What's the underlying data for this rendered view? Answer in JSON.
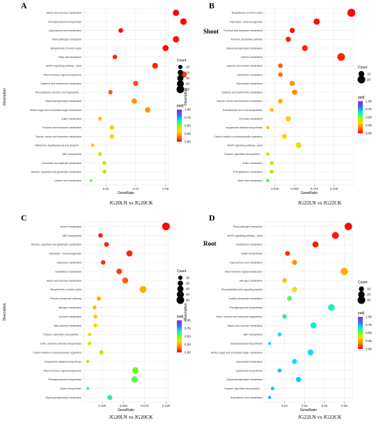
{
  "colors": {
    "panel_bg": "#ffffff",
    "grid": "#e6e6e6",
    "axis": "#222222",
    "gradient_padj": [
      "#8a2be2",
      "#4169e1",
      "#00e5ff",
      "#7fff00",
      "#ffd700",
      "#ff7f00",
      "#ff0000"
    ]
  },
  "chart_data": [
    {
      "type": "scatter",
      "panel_letter": "A",
      "caption": "JG20LN vs JG20CK",
      "side_label": "",
      "xlabel": "GeneRatio",
      "ylabel": "Description",
      "xlim": [
        0.005,
        0.062
      ],
      "xticks": [
        0.02,
        0.04,
        0.06
      ],
      "xtick_labels": [
        "0.02",
        "0.04",
        "0.06"
      ],
      "legend": {
        "count_title": "Count",
        "count_values": [
          10,
          20,
          30,
          40,
          50
        ],
        "count_labels": [
          "10",
          "20",
          "30",
          "40",
          "50"
        ],
        "padj_title": "padj",
        "padj_ticks": [
          "1.00",
          "0.75",
          "0.50",
          "0.25",
          "0.00"
        ]
      },
      "points": [
        {
          "term": "Linoleic acid metabolism",
          "x": 0.01,
          "count": 2,
          "padj": 0.55
        },
        {
          "term": "Alanine, aspartate and glutamate metabolism",
          "x": 0.019,
          "count": 8,
          "padj": 0.42
        },
        {
          "term": "Ascorbate and aldarate metabolism",
          "x": 0.019,
          "count": 8,
          "padj": 0.4
        },
        {
          "term": "ABC transporters",
          "x": 0.016,
          "count": 7,
          "padj": 0.38
        },
        {
          "term": "Stilbenoid, diarylheptanoid and gingerol ...",
          "x": 0.011,
          "count": 5,
          "padj": 0.3
        },
        {
          "term": "Glycine, serine and threonine metabolism",
          "x": 0.024,
          "count": 11,
          "padj": 0.32
        },
        {
          "term": "Fructose and mannose metabolism",
          "x": 0.024,
          "count": 11,
          "padj": 0.3
        },
        {
          "term": "Sulfur metabolism",
          "x": 0.016,
          "count": 7,
          "padj": 0.28
        },
        {
          "term": "Amino sugar and nucleotide sugar metabolism",
          "x": 0.048,
          "count": 22,
          "padj": 0.22
        },
        {
          "term": "Glycerophospholipid metabolism",
          "x": 0.039,
          "count": 18,
          "padj": 0.2
        },
        {
          "term": "Phenylalanine, tyrosine and tryptophan ...",
          "x": 0.023,
          "count": 11,
          "padj": 0.12
        },
        {
          "term": "Cysteine and methionine metabolism",
          "x": 0.04,
          "count": 18,
          "padj": 0.1
        },
        {
          "term": "Plant hormone signal transduction",
          "x": 0.072,
          "count": 33,
          "padj": 0.08
        },
        {
          "term": "MAPK signaling pathway - plant",
          "x": 0.053,
          "count": 24,
          "padj": 0.05
        },
        {
          "term": "Fatty acid elongation",
          "x": 0.026,
          "count": 12,
          "padj": 0.05
        },
        {
          "term": "Biosynthesis of amino acids",
          "x": 0.06,
          "count": 28,
          "padj": 0.02
        },
        {
          "term": "Plant-pathogen interaction",
          "x": 0.067,
          "count": 31,
          "padj": 0.02
        },
        {
          "term": "Cyanoamino acid metabolism",
          "x": 0.03,
          "count": 14,
          "padj": 0.02
        },
        {
          "term": "Phenylpropanoid biosynthesis",
          "x": 0.072,
          "count": 33,
          "padj": 0.01
        },
        {
          "term": "Starch and sucrose metabolism",
          "x": 0.067,
          "count": 31,
          "padj": 0.01
        }
      ]
    },
    {
      "type": "scatter",
      "panel_letter": "B",
      "caption": "JG22LN vs JG22CK",
      "side_label": "Shoot",
      "xlabel": "GeneRatio",
      "ylabel": "Description",
      "xlim": [
        0.012,
        0.125
      ],
      "xticks": [
        0.025,
        0.05,
        0.075,
        0.1
      ],
      "xtick_labels": [
        "0.025",
        "0.050",
        "0.075",
        "0.100"
      ],
      "legend": {
        "count_title": "Count",
        "count_values": [
          10,
          20
        ],
        "count_labels": [
          "10",
          "20"
        ],
        "padj_title": "padj",
        "padj_ticks": [
          "1.00",
          "0.75",
          "0.50",
          "0.25",
          "0.00"
        ]
      },
      "points": [
        {
          "term": "Ether lipid metabolism",
          "x": 0.016,
          "count": 2,
          "padj": 0.55
        },
        {
          "term": "Phenylalanine metabolism",
          "x": 0.021,
          "count": 3,
          "padj": 0.45
        },
        {
          "term": "Sulfur metabolism",
          "x": 0.021,
          "count": 3,
          "padj": 0.42
        },
        {
          "term": "Tropane, piperidine and pyridine ...",
          "x": 0.016,
          "count": 2,
          "padj": 0.4
        },
        {
          "term": "MAPK signaling pathway - plant",
          "x": 0.055,
          "count": 9,
          "padj": 0.35
        },
        {
          "term": "Carbon fixation in photosynthetic organisms",
          "x": 0.037,
          "count": 6,
          "padj": 0.32
        },
        {
          "term": "Isoquinoline alkaloid biosynthesis",
          "x": 0.016,
          "count": 2,
          "padj": 0.3
        },
        {
          "term": "Pyruvate metabolism",
          "x": 0.042,
          "count": 7,
          "padj": 0.3
        },
        {
          "term": "Pantothenate and CoA biosynthesis",
          "x": 0.021,
          "count": 3,
          "padj": 0.28
        },
        {
          "term": "Glycine, serine and threonine metabolism",
          "x": 0.032,
          "count": 5,
          "padj": 0.25
        },
        {
          "term": "Cysteine and methionine metabolism",
          "x": 0.05,
          "count": 8,
          "padj": 0.2
        },
        {
          "term": "Glycerolipid metabolism",
          "x": 0.047,
          "count": 7,
          "padj": 0.2
        },
        {
          "term": "Pyrimidine metabolism",
          "x": 0.032,
          "count": 5,
          "padj": 0.15
        },
        {
          "term": "Arginine and proline metabolism",
          "x": 0.032,
          "count": 5,
          "padj": 0.12
        },
        {
          "term": "Carbon metabolism",
          "x": 0.109,
          "count": 20,
          "padj": 0.05
        },
        {
          "term": "Glycerophospholipid metabolism",
          "x": 0.063,
          "count": 10,
          "padj": 0.05
        },
        {
          "term": "Pentose phosphate pathway",
          "x": 0.042,
          "count": 7,
          "padj": 0.04
        },
        {
          "term": "Fructose and mannose metabolism",
          "x": 0.047,
          "count": 7,
          "padj": 0.03
        },
        {
          "term": "Glycolysis / Gluconeogenesis",
          "x": 0.078,
          "count": 12,
          "padj": 0.02
        },
        {
          "term": "Biosynthesis of amino acids",
          "x": 0.122,
          "count": 22,
          "padj": 0.01
        }
      ]
    },
    {
      "type": "scatter",
      "panel_letter": "C",
      "caption": "JG20LN vs JG20CK",
      "side_label": "",
      "xlabel": "GeneRatio",
      "ylabel": "Description",
      "xlim": [
        0.003,
        0.103
      ],
      "xticks": [
        0.025,
        0.05,
        0.075,
        0.1
      ],
      "xtick_labels": [
        "0.025",
        "0.050",
        "0.075",
        "0.100"
      ],
      "legend": {
        "count_title": "Count",
        "count_values": [
          10,
          20,
          30,
          40,
          50
        ],
        "count_labels": [
          "10",
          "20",
          "30",
          "40",
          "50"
        ],
        "padj_title": "padj",
        "padj_ticks": [
          "1.00",
          "0.75",
          "0.50",
          "0.25",
          "0.00"
        ]
      },
      "points": [
        {
          "term": "Glycerophospholipid metabolism",
          "x": 0.034,
          "count": 17,
          "padj": 0.62
        },
        {
          "term": "Zeatin biosynthesis",
          "x": 0.008,
          "count": 3,
          "padj": 0.58
        },
        {
          "term": "Phenylpropanoid biosynthesis",
          "x": 0.063,
          "count": 33,
          "padj": 0.55
        },
        {
          "term": "Plant hormone signal transduction",
          "x": 0.064,
          "count": 33,
          "padj": 0.52
        },
        {
          "term": "Isoquinoline alkaloid biosynthesis",
          "x": 0.008,
          "count": 3,
          "padj": 0.45
        },
        {
          "term": "Carbon fixation in photosynthetic organisms",
          "x": 0.024,
          "count": 11,
          "padj": 0.42
        },
        {
          "term": "Cutin, suberine and wax biosynthesis",
          "x": 0.01,
          "count": 5,
          "padj": 0.38
        },
        {
          "term": "Tropane, piperidine and pyridine ...",
          "x": 0.01,
          "count": 5,
          "padj": 0.35
        },
        {
          "term": "beta-Alanine metabolism",
          "x": 0.017,
          "count": 8,
          "padj": 0.32
        },
        {
          "term": "Tyrosine metabolism",
          "x": 0.017,
          "count": 8,
          "padj": 0.3
        },
        {
          "term": "Nitrogen metabolism",
          "x": 0.016,
          "count": 8,
          "padj": 0.28
        },
        {
          "term": "Pentose phosphate pathway",
          "x": 0.021,
          "count": 10,
          "padj": 0.25
        },
        {
          "term": "Biosynthesis of amino acids",
          "x": 0.073,
          "count": 37,
          "padj": 0.25
        },
        {
          "term": "Starch and sucrose metabolism",
          "x": 0.052,
          "count": 26,
          "padj": 0.12
        },
        {
          "term": "Glutathione metabolism",
          "x": 0.045,
          "count": 22,
          "padj": 0.08
        },
        {
          "term": "Galactose metabolism",
          "x": 0.026,
          "count": 12,
          "padj": 0.06
        },
        {
          "term": "Glycolysis / Gluconeogenesis",
          "x": 0.057,
          "count": 28,
          "padj": 0.05
        },
        {
          "term": "Alanine, aspartate and glutamate metabolism",
          "x": 0.03,
          "count": 14,
          "padj": 0.04
        },
        {
          "term": "ABC transporters",
          "x": 0.023,
          "count": 11,
          "padj": 0.03
        },
        {
          "term": "Carbon metabolism",
          "x": 0.1,
          "count": 50,
          "padj": 0.01
        }
      ]
    },
    {
      "type": "scatter",
      "panel_letter": "D",
      "caption": "JG22LN vs JG22CK",
      "side_label": "Root",
      "xlabel": "GeneRatio",
      "ylabel": "Description",
      "xlim": [
        0.0,
        0.088
      ],
      "xticks": [
        0.02,
        0.04,
        0.06,
        0.08
      ],
      "xtick_labels": [
        "0.02",
        "0.04",
        "0.06",
        "0.08"
      ],
      "legend": {
        "count_title": "Count",
        "count_values": [
          10,
          20,
          30
        ],
        "count_labels": [
          "10",
          "20",
          "30"
        ],
        "padj_title": "padj",
        "padj_ticks": [
          "1.00",
          "0.75",
          "0.50",
          "0.25",
          "0.00"
        ]
      },
      "points": [
        {
          "term": "Arachidonic acid metabolism",
          "x": 0.005,
          "count": 2,
          "padj": 0.75
        },
        {
          "term": "Tropane, piperidine and pyridine ...",
          "x": 0.008,
          "count": 3,
          "padj": 0.72
        },
        {
          "term": "Glycerophospholipid metabolism",
          "x": 0.034,
          "count": 11,
          "padj": 0.7
        },
        {
          "term": "Carotenoid biosynthesis",
          "x": 0.015,
          "count": 5,
          "padj": 0.7
        },
        {
          "term": "Glycerolipid metabolism",
          "x": 0.03,
          "count": 10,
          "padj": 0.68
        },
        {
          "term": "Amino sugar and nucleotide sugar metabolism",
          "x": 0.046,
          "count": 15,
          "padj": 0.68
        },
        {
          "term": "Brassinosteroid biosynthesis",
          "x": 0.005,
          "count": 2,
          "padj": 0.66
        },
        {
          "term": "ABC transporters",
          "x": 0.015,
          "count": 5,
          "padj": 0.66
        },
        {
          "term": "Starch and sucrose metabolism",
          "x": 0.049,
          "count": 16,
          "padj": 0.64
        },
        {
          "term": "Valine, leucine and isoleucine degradation",
          "x": 0.02,
          "count": 7,
          "padj": 0.62
        },
        {
          "term": "Phenylpropanoid biosynthesis",
          "x": 0.067,
          "count": 22,
          "padj": 0.62
        },
        {
          "term": "Inositol phosphate metabolism",
          "x": 0.025,
          "count": 8,
          "padj": 0.55
        },
        {
          "term": "Phosphatidylinositol signaling system",
          "x": 0.03,
          "count": 10,
          "padj": 0.35
        },
        {
          "term": "Nitrogen metabolism",
          "x": 0.02,
          "count": 7,
          "padj": 0.28
        },
        {
          "term": "Plant hormone signal transduction",
          "x": 0.08,
          "count": 26,
          "padj": 0.25
        },
        {
          "term": "Cyanoamino acid metabolism",
          "x": 0.03,
          "count": 10,
          "padj": 0.2
        },
        {
          "term": "Zeatin biosynthesis",
          "x": 0.023,
          "count": 8,
          "padj": 0.05
        },
        {
          "term": "Glutathione metabolism",
          "x": 0.051,
          "count": 17,
          "padj": 0.04
        },
        {
          "term": "MAPK signaling pathway - plant",
          "x": 0.071,
          "count": 23,
          "padj": 0.03
        },
        {
          "term": "Plant-pathogen interaction",
          "x": 0.084,
          "count": 28,
          "padj": 0.01
        }
      ]
    }
  ]
}
